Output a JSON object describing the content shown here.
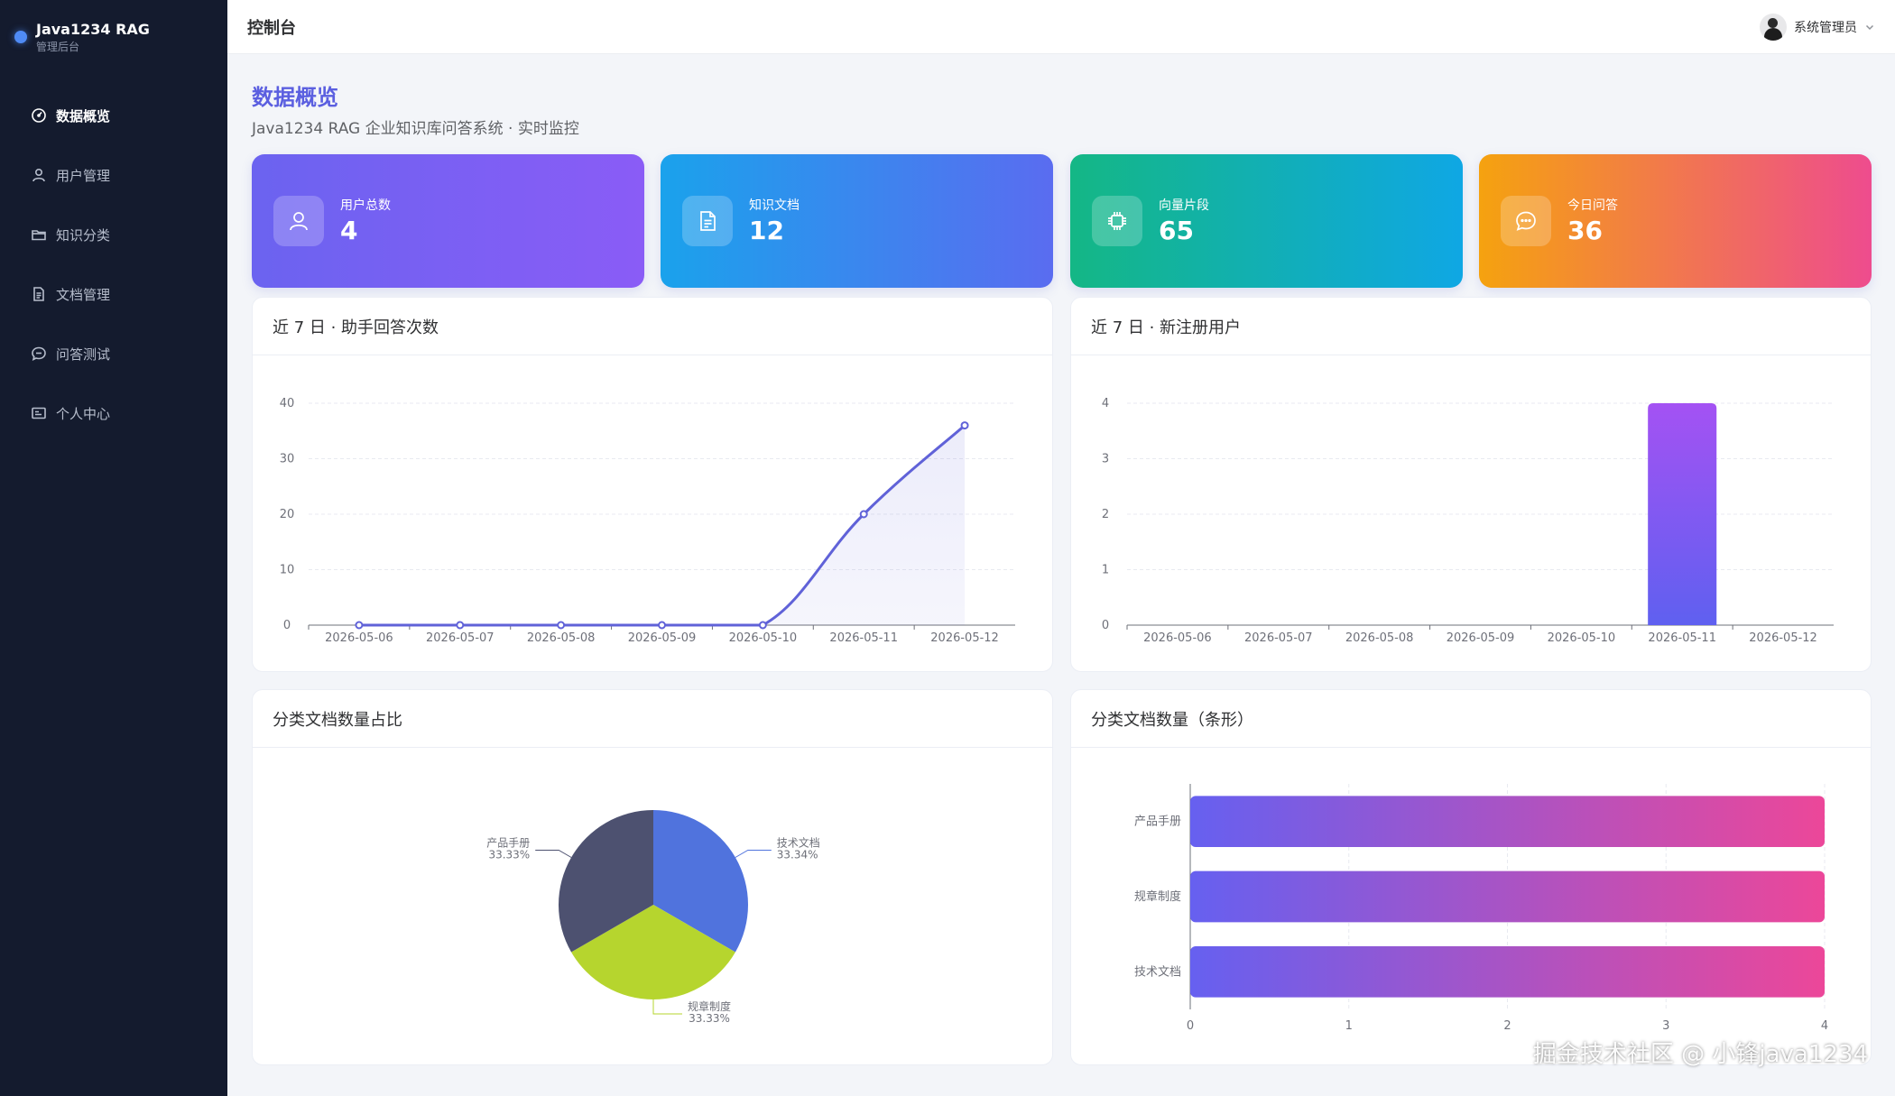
{
  "brand": {
    "title": "Java1234 RAG",
    "subtitle": "管理后台"
  },
  "sidebar": {
    "items": [
      {
        "label": "数据概览",
        "icon": "gauge-icon",
        "active": true
      },
      {
        "label": "用户管理",
        "icon": "user-icon",
        "active": false
      },
      {
        "label": "知识分类",
        "icon": "folder-icon",
        "active": false
      },
      {
        "label": "文档管理",
        "icon": "document-icon",
        "active": false
      },
      {
        "label": "问答测试",
        "icon": "chat-icon",
        "active": false
      },
      {
        "label": "个人中心",
        "icon": "id-card-icon",
        "active": false
      }
    ]
  },
  "header": {
    "title": "控制台",
    "user": "系统管理员"
  },
  "page": {
    "title": "数据概览",
    "subtitle": "Java1234 RAG 企业知识库问答系统 · 实时监控"
  },
  "stats": [
    {
      "label": "用户总数",
      "value": "4",
      "icon": "user-icon"
    },
    {
      "label": "知识文档",
      "value": "12",
      "icon": "document-icon"
    },
    {
      "label": "向量片段",
      "value": "65",
      "icon": "chip-icon"
    },
    {
      "label": "今日问答",
      "value": "36",
      "icon": "chat-icon"
    }
  ],
  "panels": {
    "answers": "近 7 日 · 助手回答次数",
    "users": "近 7 日 · 新注册用户",
    "pie": "分类文档数量占比",
    "hbar": "分类文档数量（条形）"
  },
  "chart_data": [
    {
      "type": "line",
      "title": "近 7 日 · 助手回答次数",
      "x": [
        "2026-05-06",
        "2026-05-07",
        "2026-05-08",
        "2026-05-09",
        "2026-05-10",
        "2026-05-11",
        "2026-05-12"
      ],
      "values": [
        0,
        0,
        0,
        0,
        0,
        20,
        36
      ],
      "ylim": [
        0,
        40
      ],
      "yticks": [
        0,
        10,
        20,
        30,
        40
      ],
      "smooth": true,
      "area": true,
      "grid": true,
      "color": "#6062d8"
    },
    {
      "type": "bar",
      "title": "近 7 日 · 新注册用户",
      "categories": [
        "2026-05-06",
        "2026-05-07",
        "2026-05-08",
        "2026-05-09",
        "2026-05-10",
        "2026-05-11",
        "2026-05-12"
      ],
      "values": [
        0,
        0,
        0,
        0,
        0,
        4,
        0
      ],
      "ylim": [
        0,
        4
      ],
      "yticks": [
        0,
        1,
        2,
        3,
        4
      ],
      "grid": true,
      "color_top": "#a452f3",
      "color_bottom": "#5f60f0"
    },
    {
      "type": "pie",
      "title": "分类文档数量占比",
      "slices": [
        {
          "name": "技术文档",
          "value": 4,
          "percent": "33.34%",
          "color": "#5073dd"
        },
        {
          "name": "规章制度",
          "value": 4,
          "percent": "33.33%",
          "color": "#b6d52e"
        },
        {
          "name": "产品手册",
          "value": 4,
          "percent": "33.33%",
          "color": "#4d5170"
        }
      ]
    },
    {
      "type": "bar",
      "orientation": "horizontal",
      "title": "分类文档数量（条形）",
      "categories": [
        "产品手册",
        "规章制度",
        "技术文档"
      ],
      "values": [
        4,
        4,
        4
      ],
      "xlim": [
        0,
        4
      ],
      "xticks": [
        0,
        1,
        2,
        3,
        4
      ],
      "color_start": "#6660f0",
      "color_end": "#ec4799"
    }
  ],
  "watermark": "掘金技术社区 @ 小锋java1234"
}
